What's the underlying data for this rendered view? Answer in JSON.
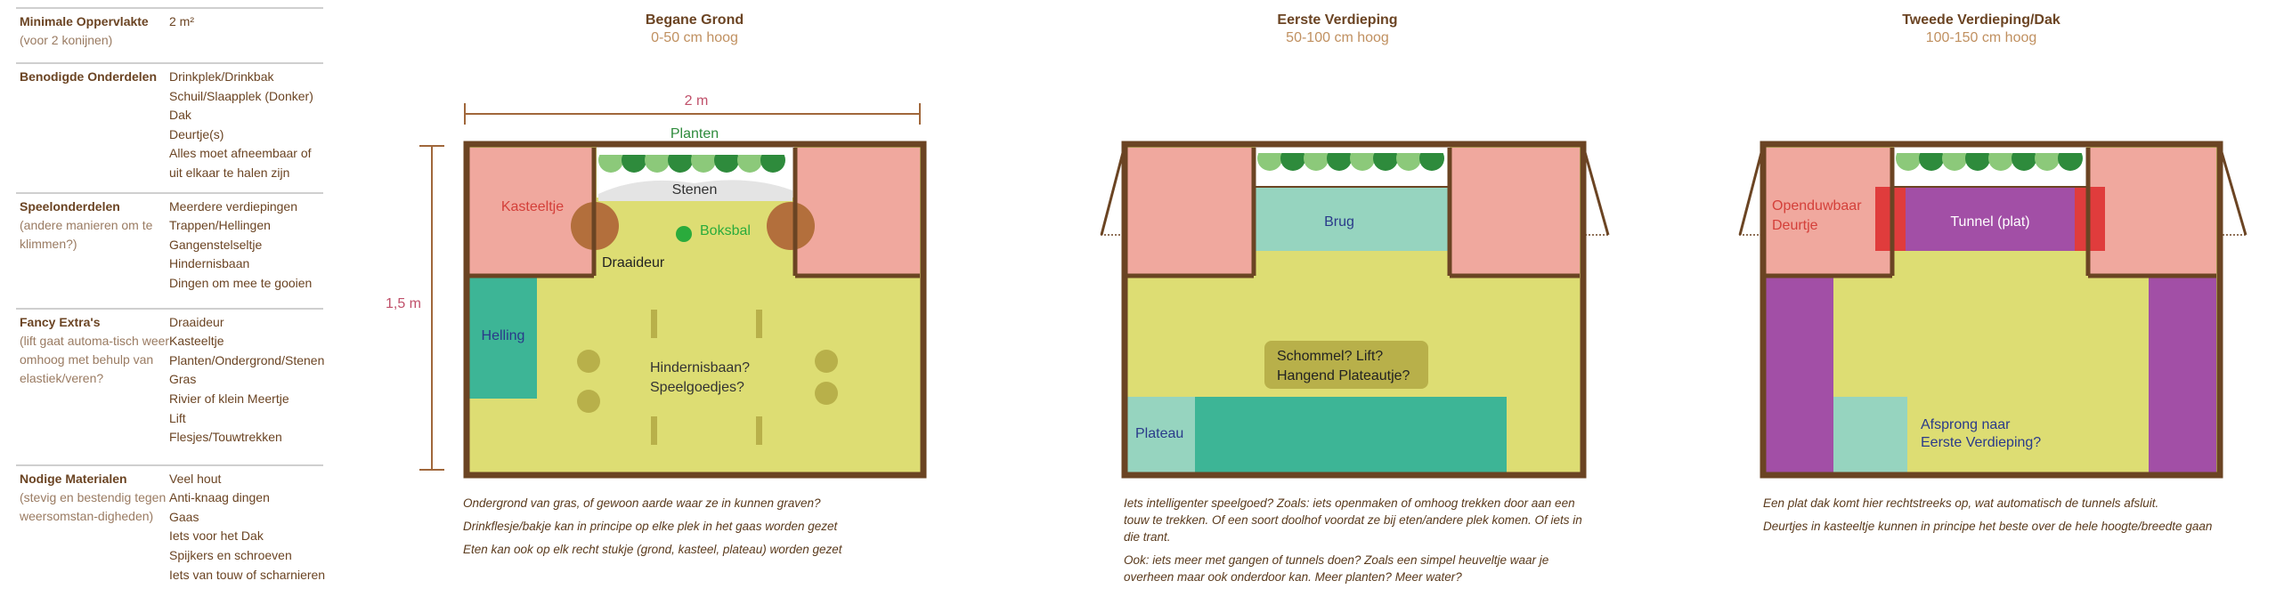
{
  "spec": [
    {
      "title": "Minimale Oppervlakte",
      "sub": "(voor 2 konijnen)",
      "items": [
        "2 m²"
      ]
    },
    {
      "title": "Benodigde Onderdelen",
      "sub": "",
      "items": [
        "Drinkplek/Drinkbak",
        "Schuil/Slaapplek (Donker)",
        "Dak",
        "Deurtje(s)",
        "Alles moet afneembaar of",
        "uit elkaar te halen zijn"
      ]
    },
    {
      "title": "Speelonderdelen",
      "sub": "(andere manieren om te klimmen?)",
      "items": [
        "Meerdere verdiepingen",
        "Trappen/Hellingen",
        "Gangenstelseltje",
        "Hindernisbaan",
        "Dingen om mee te gooien"
      ]
    },
    {
      "title": "Fancy Extra's",
      "sub": "(lift gaat automa-tisch weer omhoog met behulp van elastiek/veren?",
      "items": [
        "Draaideur",
        "Kasteeltje",
        "Planten/Ondergrond/Stenen",
        "Gras",
        "Rivier of klein Meertje",
        "Lift",
        "Flesjes/Touwtrekken"
      ]
    },
    {
      "title": "Nodige Materialen",
      "sub": "(stevig en bestendig tegen weersomstan-digheden)",
      "items": [
        "Veel hout",
        "Anti-knaag dingen",
        "Gaas",
        "Iets voor het Dak",
        "Spijkers en schroeven",
        "Iets van touw of scharnieren"
      ]
    }
  ],
  "panels": [
    {
      "title": "Begane Grond",
      "height": "0-50 cm hoog"
    },
    {
      "title": "Eerste Verdieping",
      "height": "50-100 cm hoog"
    },
    {
      "title": "Tweede Verdieping/Dak",
      "height": "100-150 cm hoog"
    }
  ],
  "dims": {
    "width": "2 m",
    "height": "1,5 m"
  },
  "ground": {
    "plants": "Planten",
    "stones": "Stenen",
    "castle": "Kasteeltje",
    "ball": "Boksbal",
    "door": "Draaideur",
    "ramp": "Helling",
    "obstacle_1": "Hindernisbaan?",
    "obstacle_2": "Speelgoedjes?",
    "notes": [
      "Ondergrond van gras, of gewoon aarde waar ze in kunnen graven?",
      "Drinkflesje/bakje kan in principe op elke plek in het gaas worden gezet",
      "Eten kan ook op elk recht stukje (grond, kasteel, plateau) worden gezet"
    ]
  },
  "first": {
    "bridge": "Brug",
    "swing_1": "Schommel? Lift?",
    "swing_2": "Hangend Plateautje?",
    "plateau": "Plateau",
    "notes": [
      "Iets intelligenter speelgoed? Zoals: iets openmaken of omhoog trekken door aan een touw te trekken. Of een soort doolhof voordat ze bij eten/andere plek komen. Of iets in die trant.",
      "Ook: iets meer met gangen of tunnels doen? Zoals een simpel heuveltje waar je overheen maar ook onderdoor kan. Meer planten? Meer water?"
    ]
  },
  "second": {
    "door_1": "Openduwbaar",
    "door_2": "Deurtje",
    "tunnel": "Tunnel (plat)",
    "jump_1": "Afsprong naar",
    "jump_2": "Eerste Verdieping?",
    "notes": [
      "Een plat dak komt hier rechtstreeks op, wat automatisch de tunnels afsluit.",
      "Deurtjes in kasteeltje kunnen in principe  het beste over de hele hoogte/breedte gaan"
    ]
  },
  "colors": {
    "frame": "#6b4423",
    "floor": "#dddd73",
    "castle": "#f0a89e",
    "plant_light": "#8cc97a",
    "plant_dark": "#2e8b3c",
    "teal": "#3db596",
    "light_teal": "#96d4bf",
    "purple": "#a24fa6",
    "red": "#e03c3c",
    "olive": "#b8b04a"
  }
}
